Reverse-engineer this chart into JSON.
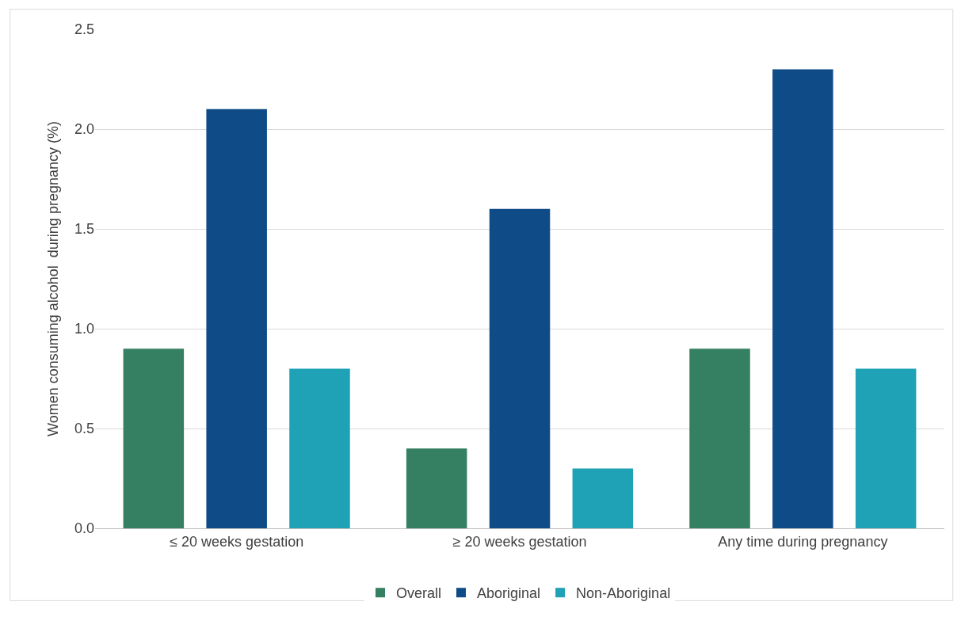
{
  "chart_data": {
    "type": "bar",
    "ylabel": "Women consuming alcohol  during pregnancy (%)",
    "categories": [
      "≤ 20 weeks gestation",
      "≥ 20 weeks gestation",
      "Any time during pregnancy"
    ],
    "series": [
      {
        "name": "Overall",
        "color": "#357f63",
        "values": [
          0.9,
          0.4,
          0.9
        ]
      },
      {
        "name": "Aboriginal",
        "color": "#0f4c87",
        "values": [
          2.1,
          1.6,
          2.3
        ]
      },
      {
        "name": "Non-Aboriginal",
        "color": "#1fa2b5",
        "values": [
          0.8,
          0.3,
          0.8
        ]
      }
    ],
    "ylim": [
      0,
      2.5
    ],
    "yticks": [
      {
        "value": 0,
        "label": "0.0"
      },
      {
        "value": 0.5,
        "label": "0.5"
      },
      {
        "value": 1,
        "label": "1.0"
      },
      {
        "value": 1.5,
        "label": "1.5"
      },
      {
        "value": 2,
        "label": "2.0"
      },
      {
        "value": 2.5,
        "label": "2.5"
      }
    ],
    "grid": "y",
    "legend": "bottom"
  }
}
